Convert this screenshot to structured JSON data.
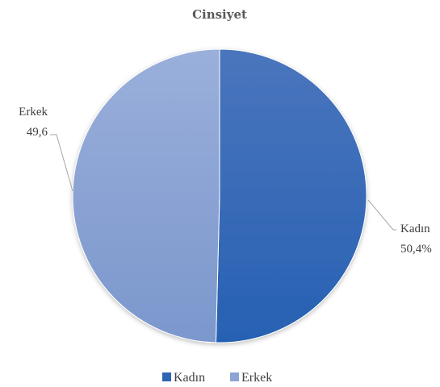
{
  "chart_data": {
    "type": "pie",
    "title": "Cinsiyet",
    "categories": [
      "Kadın",
      "Erkek"
    ],
    "values": [
      50.4,
      49.6
    ],
    "value_labels": [
      "50,4%",
      "49,6"
    ],
    "colors": [
      "#2e64b4",
      "#8ba4d3"
    ],
    "legend_position": "bottom"
  }
}
